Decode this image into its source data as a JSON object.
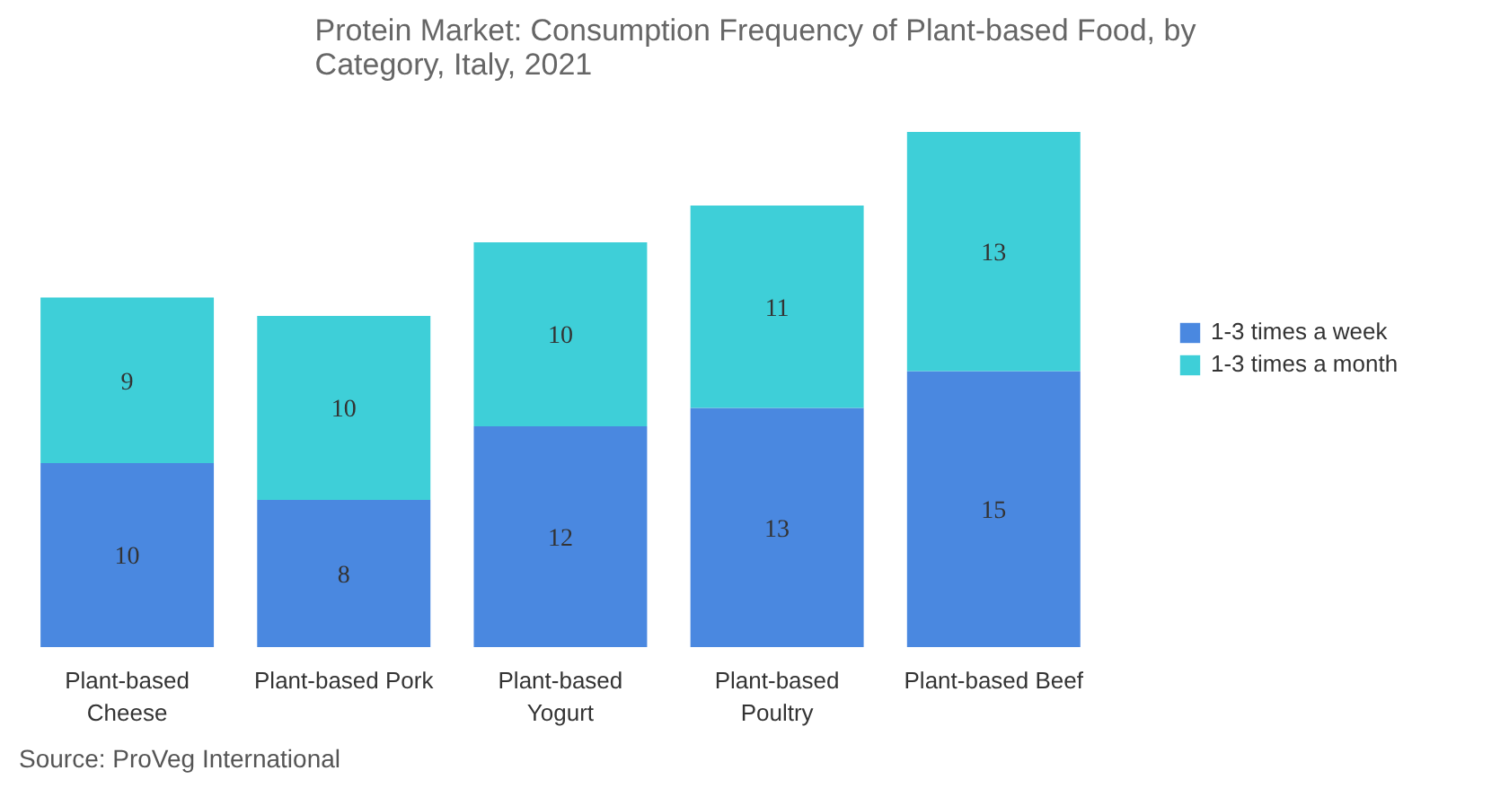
{
  "chart_data": {
    "type": "bar",
    "stacked": true,
    "data_labels": true,
    "legend": "right",
    "grid": false,
    "title": "Protein Market: Consumption Frequency of Plant-based Food, by Category, Italy, 2021",
    "categories": [
      "Plant-based Cheese",
      "Plant-based Pork",
      "Plant-based Yogurt",
      "Plant-based Poultry",
      "Plant-based Beef"
    ],
    "series": [
      {
        "name": "1-3 times a week",
        "color": "#4a88e0",
        "values": [
          10,
          8,
          12,
          13,
          15
        ]
      },
      {
        "name": "1-3 times a month",
        "color": "#3ecfd8",
        "values": [
          9,
          10,
          10,
          11,
          13
        ]
      }
    ],
    "annotations": [
      "Source: ProVeg International"
    ]
  }
}
